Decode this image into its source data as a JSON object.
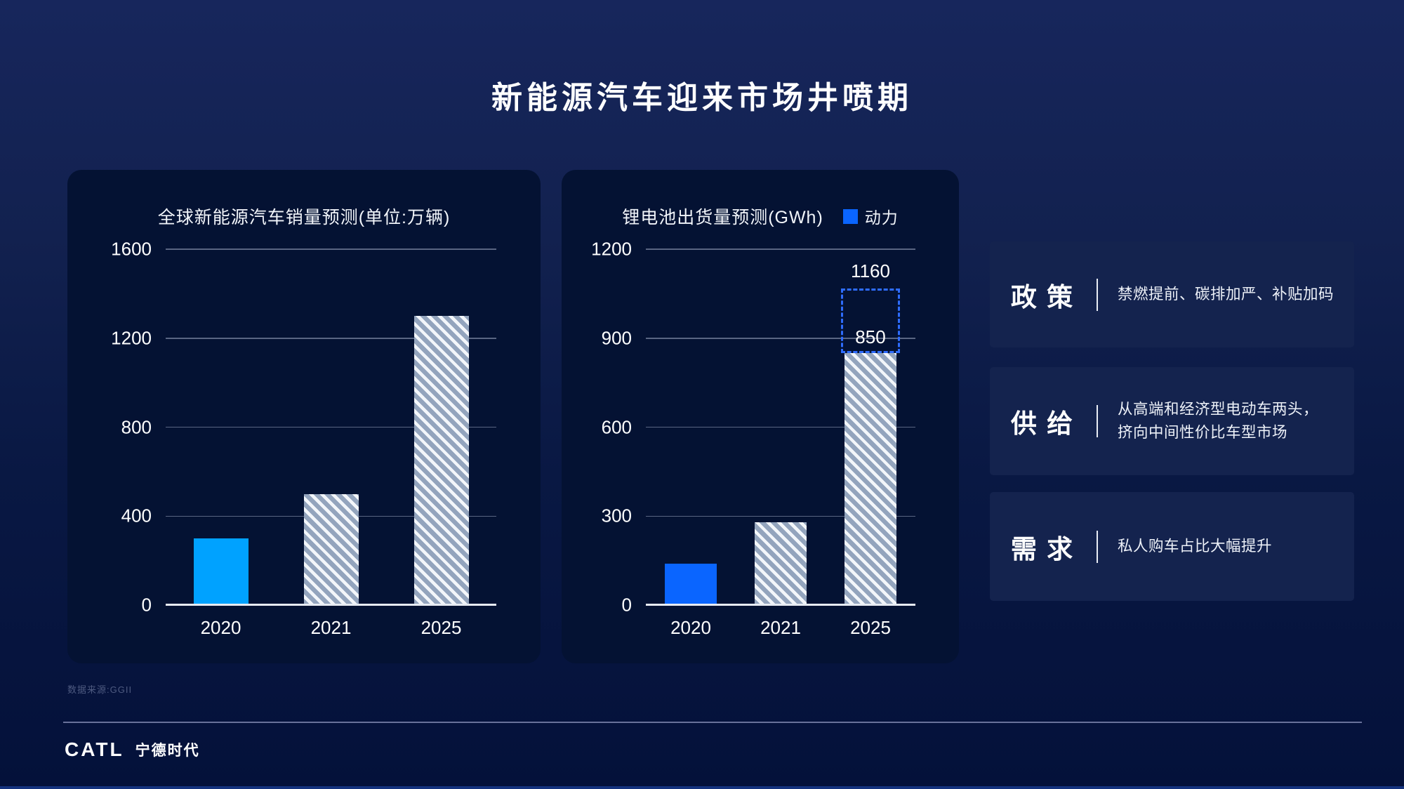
{
  "title": "新能源汽车迎来市场井喷期",
  "chart_data": [
    {
      "type": "bar",
      "title": "全球新能源汽车销量预测(单位:万辆)",
      "categories": [
        "2020",
        "2021",
        "2025"
      ],
      "values": [
        300,
        500,
        1300
      ],
      "ylim": [
        0,
        1600
      ],
      "yticks": [
        0,
        400,
        800,
        1200,
        1600
      ],
      "bar_styles": [
        "solid",
        "hatch",
        "hatch"
      ],
      "solid_color": "#00A2FF",
      "grid": true,
      "legend": []
    },
    {
      "type": "bar",
      "title": "锂电池出货量预测(GWh)",
      "categories": [
        "2020",
        "2021",
        "2025"
      ],
      "values": [
        140,
        280,
        850
      ],
      "ylim": [
        0,
        1200
      ],
      "yticks": [
        0,
        300,
        600,
        900,
        1200
      ],
      "bar_styles": [
        "solid",
        "hatch",
        "hatch"
      ],
      "solid_color": "#0A65FF",
      "grid": true,
      "legend": [
        {
          "label": "动力",
          "color": "#0A65FF"
        }
      ],
      "dashed_projection": {
        "category": "2025",
        "total": 1160,
        "total_label": "1160",
        "bar_label": "850"
      }
    }
  ],
  "info_panels": [
    {
      "title": "政 策",
      "desc_lines": [
        "禁燃提前、碳排加严、补贴加码"
      ]
    },
    {
      "title": "供 给",
      "desc_lines": [
        "从高端和经济型电动车两头，",
        "挤向中间性价比车型市场"
      ]
    },
    {
      "title": "需 求",
      "desc_lines": [
        "私人购车占比大幅提升"
      ]
    }
  ],
  "footer": {
    "source_note": "数据来源:GGII",
    "logo_latin": "CATL",
    "logo_cn": "宁德时代"
  },
  "colors": {
    "accent_cyan": "#00A2FF",
    "accent_blue": "#0A65FF",
    "hatch_base": "#93A4BD",
    "hatch_stripe": "#F3F6FA",
    "dashed_outline": "#2E6CFF",
    "panel_bg": "#041233",
    "info_panel_bg": "#14234E"
  }
}
